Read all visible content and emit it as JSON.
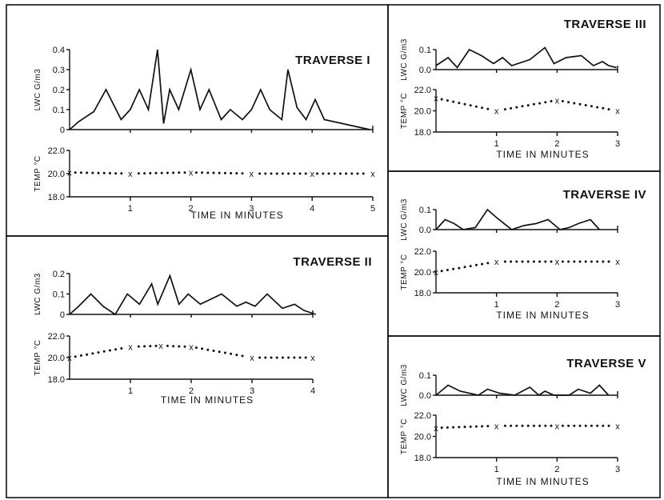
{
  "chart_data": [
    {
      "type": "line",
      "title": "TRAVERSE I",
      "xlabel": "TIME  IN  MINUTES",
      "x_ticks": [
        "1",
        "2",
        "3",
        "4",
        "5"
      ],
      "xlim": [
        0,
        5
      ],
      "lwc": {
        "ylabel": "LWC  G/m3",
        "y_ticks": [
          "0.4",
          "0.3",
          "0.2",
          "0.1",
          "0"
        ],
        "ylim": [
          0,
          0.4
        ],
        "x": [
          0,
          0.15,
          0.4,
          0.6,
          0.85,
          1.0,
          1.15,
          1.3,
          1.45,
          1.55,
          1.65,
          1.8,
          2.0,
          2.15,
          2.3,
          2.5,
          2.65,
          2.85,
          3.0,
          3.15,
          3.3,
          3.5,
          3.6,
          3.75,
          3.9,
          4.05,
          4.2,
          4.95
        ],
        "values": [
          0,
          0.04,
          0.09,
          0.2,
          0.05,
          0.1,
          0.2,
          0.1,
          0.4,
          0.03,
          0.2,
          0.1,
          0.3,
          0.1,
          0.2,
          0.05,
          0.1,
          0.05,
          0.1,
          0.2,
          0.1,
          0.05,
          0.3,
          0.11,
          0.05,
          0.15,
          0.05,
          0.0
        ]
      },
      "temp": {
        "ylabel": "TEMP °C",
        "y_ticks": [
          "22.0",
          "20.0",
          "18.0"
        ],
        "ylim": [
          18,
          22
        ],
        "x": [
          0,
          1,
          2,
          3,
          4,
          5
        ],
        "values": [
          20.1,
          20.0,
          20.1,
          20.0,
          20.0,
          20.0
        ]
      }
    },
    {
      "type": "line",
      "title": "TRAVERSE II",
      "xlabel": "TIME  IN  MINUTES",
      "x_ticks": [
        "1",
        "2",
        "3",
        "4"
      ],
      "xlim": [
        0,
        4
      ],
      "lwc": {
        "ylabel": "LWC  G/m3",
        "y_ticks": [
          "0.2",
          "0.1",
          "0"
        ],
        "ylim": [
          0,
          0.2
        ],
        "x": [
          0,
          0.15,
          0.35,
          0.55,
          0.75,
          0.95,
          1.15,
          1.35,
          1.45,
          1.65,
          1.8,
          1.95,
          2.15,
          2.5,
          2.75,
          2.9,
          3.05,
          3.25,
          3.5,
          3.7,
          3.85,
          4.05
        ],
        "values": [
          0,
          0.04,
          0.1,
          0.04,
          0.0,
          0.1,
          0.05,
          0.15,
          0.05,
          0.19,
          0.05,
          0.1,
          0.05,
          0.1,
          0.04,
          0.06,
          0.04,
          0.1,
          0.03,
          0.05,
          0.02,
          0.0
        ]
      },
      "temp": {
        "ylabel": "TEMP °C",
        "y_ticks": [
          "22.0",
          "20.0",
          "18.0"
        ],
        "ylim": [
          18,
          22
        ],
        "x": [
          0,
          1,
          1.5,
          2,
          3,
          4
        ],
        "values": [
          20.0,
          21.0,
          21.1,
          21.0,
          20.0,
          20.0
        ]
      }
    },
    {
      "type": "line",
      "title": "TRAVERSE III",
      "xlabel": "TIME  IN  MINUTES",
      "x_ticks": [
        "1",
        "2",
        "3"
      ],
      "xlim": [
        0,
        3
      ],
      "lwc": {
        "ylabel": "LWC  G/m3",
        "y_ticks": [
          "0.1",
          "0.0"
        ],
        "ylim": [
          0,
          0.1
        ],
        "x": [
          0,
          0.2,
          0.35,
          0.55,
          0.75,
          0.95,
          1.1,
          1.25,
          1.55,
          1.8,
          1.95,
          2.15,
          2.4,
          2.6,
          2.75,
          2.85,
          2.98
        ],
        "values": [
          0.02,
          0.06,
          0.01,
          0.1,
          0.07,
          0.03,
          0.06,
          0.02,
          0.05,
          0.11,
          0.03,
          0.06,
          0.07,
          0.02,
          0.04,
          0.02,
          0.01
        ]
      },
      "temp": {
        "ylabel": "TEMP °C",
        "y_ticks": [
          "22.0",
          "20.0",
          "18.0"
        ],
        "ylim": [
          18,
          22
        ],
        "x": [
          0,
          1,
          2,
          3
        ],
        "values": [
          21.2,
          20.0,
          21.0,
          20.0
        ]
      }
    },
    {
      "type": "line",
      "title": "TRAVERSE IV",
      "xlabel": "TIME  IN  MINUTES",
      "x_ticks": [
        "1",
        "2",
        "3"
      ],
      "xlim": [
        0,
        3
      ],
      "lwc": {
        "ylabel": "LWC  G/m3",
        "y_ticks": [
          "0.1",
          "0.0"
        ],
        "ylim": [
          0,
          0.1
        ],
        "x": [
          0,
          0.15,
          0.3,
          0.45,
          0.65,
          0.85,
          1.0,
          1.25,
          1.45,
          1.65,
          1.85,
          2.05,
          2.2,
          2.35,
          2.55,
          2.7
        ],
        "values": [
          0,
          0.05,
          0.03,
          0.0,
          0.01,
          0.1,
          0.06,
          0.0,
          0.02,
          0.03,
          0.05,
          0.0,
          0.01,
          0.03,
          0.05,
          0.0
        ]
      },
      "temp": {
        "ylabel": "TEMP °C",
        "y_ticks": [
          "22.0",
          "20.0",
          "18.0"
        ],
        "ylim": [
          18,
          22
        ],
        "x": [
          0,
          1,
          2,
          3
        ],
        "values": [
          20.0,
          21.0,
          21.0,
          21.0
        ]
      }
    },
    {
      "type": "line",
      "title": "TRAVERSE V",
      "xlabel": "TIME  IN  MINUTES",
      "x_ticks": [
        "1",
        "2",
        "3"
      ],
      "xlim": [
        0,
        3
      ],
      "lwc": {
        "ylabel": "LWC  G/m3",
        "y_ticks": [
          "0.1",
          "0.0"
        ],
        "ylim": [
          0,
          0.1
        ],
        "x": [
          0,
          0.2,
          0.4,
          0.7,
          0.85,
          1.05,
          1.3,
          1.55,
          1.7,
          1.8,
          1.95,
          2.2,
          2.35,
          2.55,
          2.7,
          2.85
        ],
        "values": [
          0,
          0.05,
          0.02,
          0.0,
          0.03,
          0.01,
          0.0,
          0.04,
          0.0,
          0.02,
          0.0,
          0.0,
          0.03,
          0.01,
          0.05,
          0.0
        ]
      },
      "temp": {
        "ylabel": "TEMP °C",
        "y_ticks": [
          "22.0",
          "20.0",
          "18.0"
        ],
        "ylim": [
          18,
          22
        ],
        "x": [
          0,
          1,
          2,
          3
        ],
        "values": [
          20.8,
          21.0,
          21.0,
          21.0
        ]
      }
    }
  ]
}
